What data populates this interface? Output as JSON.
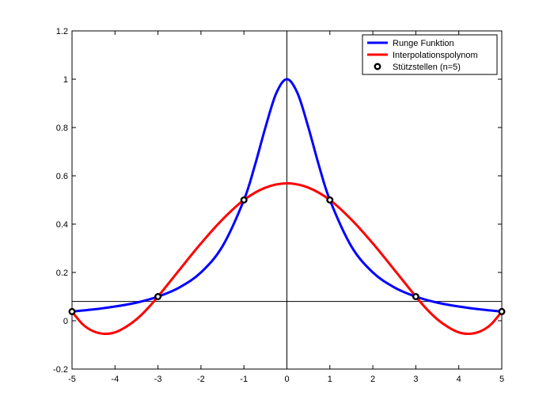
{
  "chart_data": {
    "type": "line",
    "title": "",
    "xlabel": "",
    "ylabel": "",
    "xlim": [
      -5,
      5
    ],
    "ylim": [
      -0.2,
      1.2
    ],
    "xticks": [
      "-5",
      "-4",
      "-3",
      "-2",
      "-1",
      "0",
      "1",
      "2",
      "3",
      "4",
      "5"
    ],
    "yticks": [
      "-0.2",
      "0",
      "0.2",
      "0.4",
      "0.6",
      "0.8",
      "1",
      "1.2"
    ],
    "grid": false,
    "legend_position": "top-right",
    "reference_lines": {
      "vertical_x": 0,
      "horizontal_y": 0.08
    },
    "series": [
      {
        "name": "Runge Funktion",
        "kind": "line",
        "color": "#0000ff",
        "x": [
          -5,
          -4.5,
          -4,
          -3.5,
          -3,
          -2.5,
          -2,
          -1.5,
          -1,
          -0.75,
          -0.5,
          -0.25,
          0,
          0.25,
          0.5,
          0.75,
          1,
          1.5,
          2,
          2.5,
          3,
          3.5,
          4,
          4.5,
          5
        ],
        "y": [
          0.038,
          0.047,
          0.059,
          0.075,
          0.1,
          0.138,
          0.2,
          0.308,
          0.5,
          0.64,
          0.8,
          0.941,
          1.0,
          0.941,
          0.8,
          0.64,
          0.5,
          0.308,
          0.2,
          0.138,
          0.1,
          0.075,
          0.059,
          0.047,
          0.038
        ]
      },
      {
        "name": "Interpolationspolynom",
        "kind": "line",
        "color": "#ff0000",
        "x": [
          -5,
          -4.75,
          -4.5,
          -4.25,
          -4,
          -3.75,
          -3.5,
          -3.25,
          -3,
          -2.5,
          -2,
          -1.5,
          -1,
          -0.5,
          0,
          0.5,
          1,
          1.5,
          2,
          2.5,
          3,
          3.25,
          3.5,
          3.75,
          4,
          4.25,
          4.5,
          4.75,
          5
        ],
        "y": [
          0.038,
          -0.015,
          -0.044,
          -0.054,
          -0.048,
          -0.026,
          0.006,
          0.049,
          0.1,
          0.211,
          0.32,
          0.419,
          0.5,
          0.551,
          0.569,
          0.551,
          0.5,
          0.419,
          0.32,
          0.211,
          0.1,
          0.049,
          0.006,
          -0.026,
          -0.048,
          -0.054,
          -0.044,
          -0.015,
          0.038
        ]
      },
      {
        "name": "Stützstellen (n=5)",
        "kind": "scatter",
        "color": "#000000",
        "x": [
          -5,
          -3,
          -1,
          1,
          3,
          5
        ],
        "y": [
          0.038,
          0.1,
          0.5,
          0.5,
          0.1,
          0.038
        ]
      }
    ]
  }
}
